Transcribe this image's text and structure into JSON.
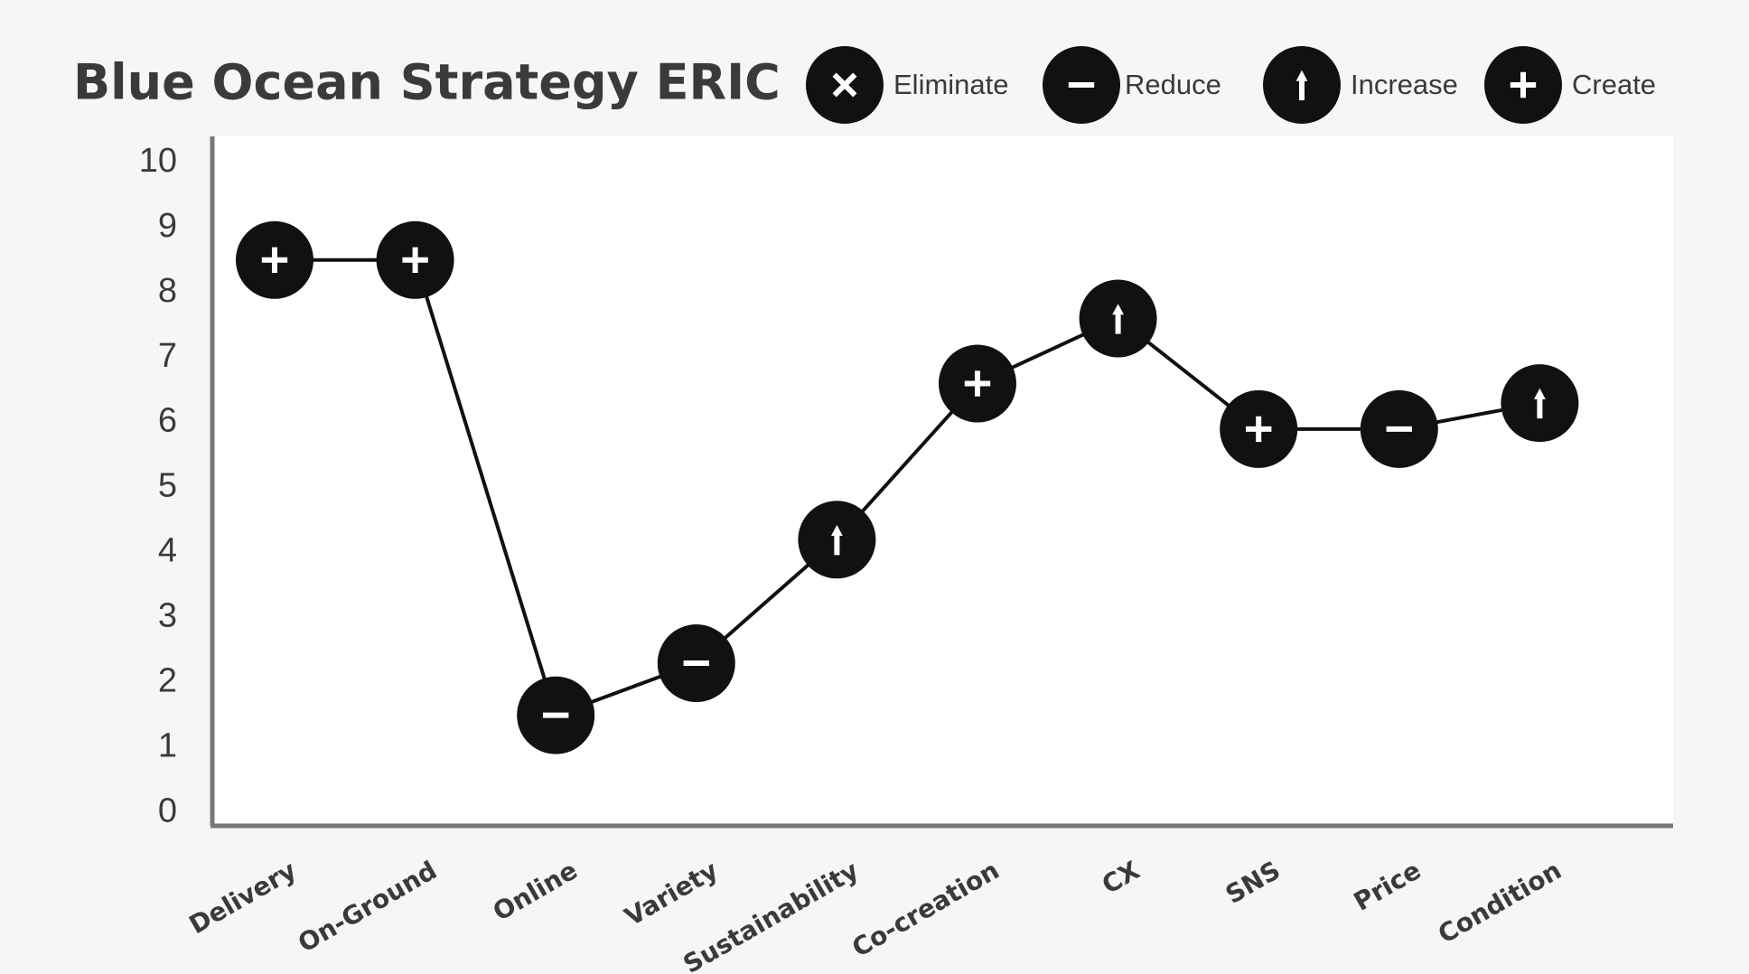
{
  "chart_data": {
    "type": "line",
    "title": "Blue Ocean Strategy ERIC",
    "categories": [
      "Delivery",
      "On-Ground",
      "Online",
      "Variety",
      "Sustainability",
      "Co-creation",
      "CX",
      "SNS",
      "Price",
      "Condition"
    ],
    "values": [
      8.5,
      8.5,
      1.5,
      2.3,
      4.2,
      6.6,
      7.6,
      5.9,
      5.9,
      6.3
    ],
    "markers": [
      "create",
      "create",
      "reduce",
      "reduce",
      "increase",
      "create",
      "increase",
      "create",
      "reduce",
      "increase"
    ],
    "legend": [
      {
        "key": "eliminate",
        "name": "Eliminate"
      },
      {
        "key": "reduce",
        "name": "Reduce"
      },
      {
        "key": "increase",
        "name": "Increase"
      },
      {
        "key": "create",
        "name": "Create"
      }
    ],
    "color": "#111111",
    "ylim": [
      -0.2,
      10.4
    ],
    "yticks": [
      0,
      1,
      2,
      3,
      4,
      5,
      6,
      7,
      8,
      9,
      10
    ]
  }
}
